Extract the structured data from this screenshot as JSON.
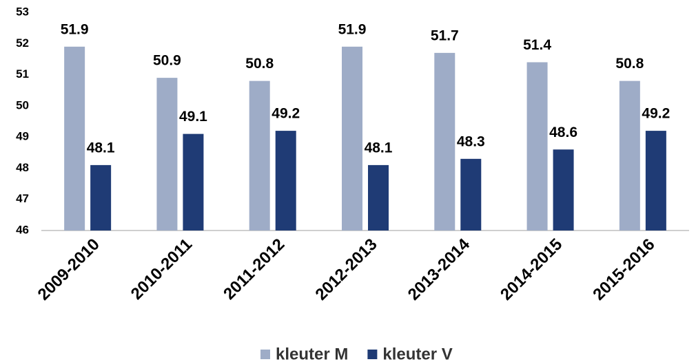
{
  "chart_data": {
    "type": "bar",
    "categories": [
      "2009-2010",
      "2010-2011",
      "2011-2012",
      "2012-2013",
      "2013-2014",
      "2014-2015",
      "2015-2016"
    ],
    "series": [
      {
        "name": "kleuter M",
        "color": "#9eacc7",
        "values": [
          51.9,
          50.9,
          50.8,
          51.9,
          51.7,
          51.4,
          50.8
        ]
      },
      {
        "name": "kleuter V",
        "color": "#1f3b75",
        "values": [
          48.1,
          49.1,
          49.2,
          48.1,
          48.3,
          48.6,
          49.2
        ]
      }
    ],
    "ylim": [
      46,
      53
    ],
    "yticks": [
      46,
      47,
      48,
      49,
      50,
      51,
      52,
      53
    ],
    "grid": false,
    "legend": "bottom"
  }
}
